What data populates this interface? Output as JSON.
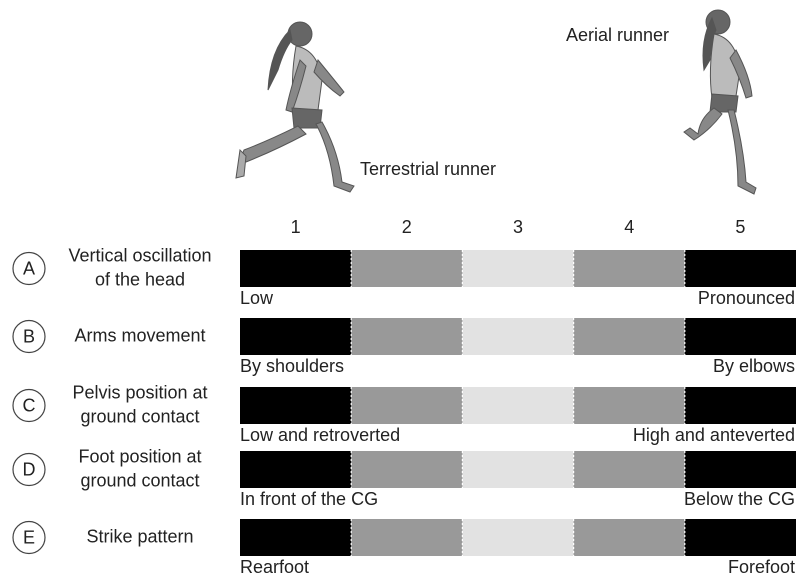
{
  "runners": {
    "terrestrial": "Terrestrial runner",
    "aerial": "Aerial runner"
  },
  "scale": [
    "1",
    "2",
    "3",
    "4",
    "5"
  ],
  "rows": [
    {
      "letter": "A",
      "label": [
        "Vertical oscillation",
        "of the head"
      ],
      "left": "Low",
      "right": "Pronounced"
    },
    {
      "letter": "B",
      "label": [
        "Arms movement"
      ],
      "left": "By shoulders",
      "right": "By elbows"
    },
    {
      "letter": "C",
      "label": [
        "Pelvis position at",
        "ground contact"
      ],
      "left": "Low and retroverted",
      "right": "High and anteverted"
    },
    {
      "letter": "D",
      "label": [
        "Foot position at",
        "ground contact"
      ],
      "left": "In front of the CG",
      "right": "Below the CG"
    },
    {
      "letter": "E",
      "label": [
        "Strike pattern"
      ],
      "left": "Rearfoot",
      "right": "Forefoot"
    }
  ]
}
